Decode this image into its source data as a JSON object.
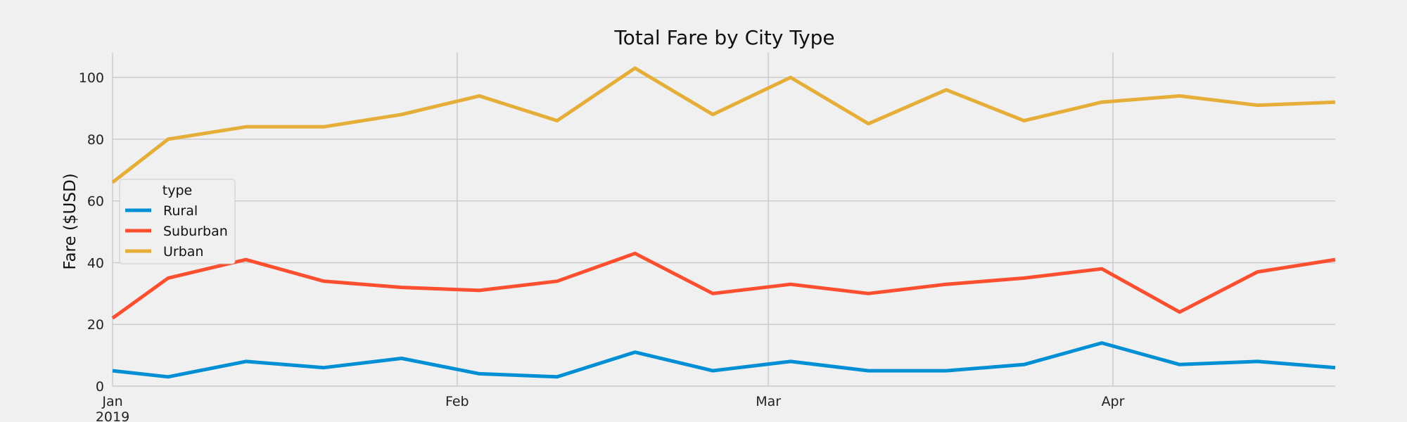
{
  "chart_data": {
    "type": "line",
    "title": "Total Fare by City Type",
    "xlabel": "",
    "ylabel": "Fare ($USD)",
    "x": [
      "2019-01-01",
      "2019-01-06",
      "2019-01-13",
      "2019-01-20",
      "2019-01-27",
      "2019-02-03",
      "2019-02-10",
      "2019-02-17",
      "2019-02-24",
      "2019-03-03",
      "2019-03-10",
      "2019-03-17",
      "2019-03-24",
      "2019-03-31",
      "2019-04-07",
      "2019-04-14",
      "2019-04-21"
    ],
    "x_ticks": [
      {
        "date": "2019-01-01",
        "label": "Jan",
        "sublabel": "2019"
      },
      {
        "date": "2019-02-01",
        "label": "Feb",
        "sublabel": ""
      },
      {
        "date": "2019-03-01",
        "label": "Mar",
        "sublabel": ""
      },
      {
        "date": "2019-04-01",
        "label": "Apr",
        "sublabel": ""
      }
    ],
    "xlim": [
      "2019-01-01",
      "2019-04-21"
    ],
    "ylim": [
      0,
      108
    ],
    "y_ticks": [
      0,
      20,
      40,
      60,
      80,
      100
    ],
    "grid": true,
    "legend_title": "type",
    "legend_position": "center-left",
    "series": [
      {
        "name": "Rural",
        "color": "#008fd5",
        "values": [
          5,
          3,
          8,
          6,
          9,
          4,
          3,
          11,
          5,
          8,
          5,
          5,
          7,
          14,
          7,
          8,
          6
        ]
      },
      {
        "name": "Suburban",
        "color": "#fc4f30",
        "values": [
          22,
          35,
          41,
          34,
          32,
          31,
          34,
          43,
          30,
          33,
          30,
          33,
          35,
          38,
          24,
          37,
          41
        ]
      },
      {
        "name": "Urban",
        "color": "#e5ae38",
        "values": [
          66,
          80,
          84,
          84,
          88,
          94,
          86,
          103,
          88,
          100,
          85,
          96,
          86,
          92,
          94,
          91,
          92
        ]
      }
    ]
  }
}
